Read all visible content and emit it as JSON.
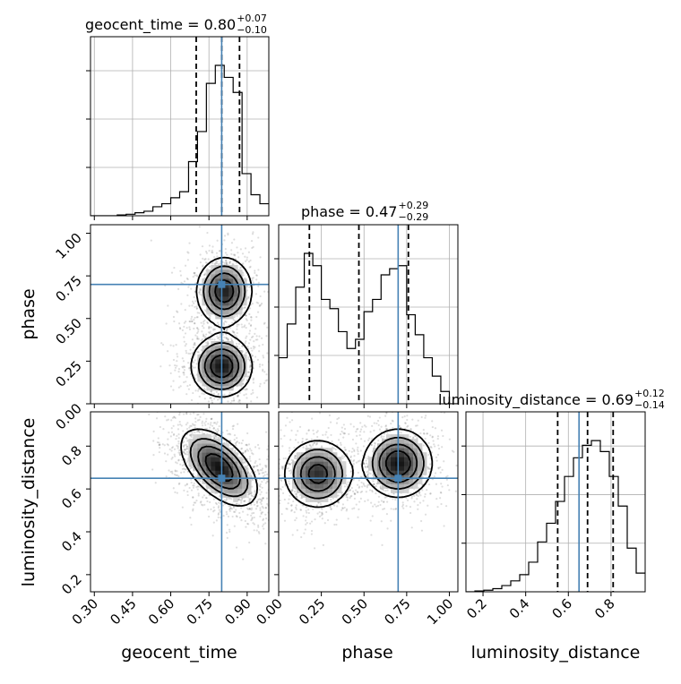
{
  "chart_data": {
    "type": "corner",
    "parameters": [
      "geocent_time",
      "phase",
      "luminosity_distance"
    ],
    "truth": {
      "geocent_time": 0.8,
      "phase": 0.7,
      "luminosity_distance": 0.65
    },
    "titles": [
      {
        "param": "geocent_time",
        "text": "geocent_time = 0.80",
        "plus": "+0.07",
        "minus": "−0.10"
      },
      {
        "param": "phase",
        "text": "phase = 0.47",
        "plus": "+0.29",
        "minus": "−0.29"
      },
      {
        "param": "luminosity_distance",
        "text": "luminosity_distance = 0.69",
        "plus": "+0.12",
        "minus": "−0.14"
      }
    ],
    "axes": {
      "geocent_time": {
        "range": [
          0.285,
          0.985
        ],
        "ticks": [
          0.3,
          0.45,
          0.6,
          0.75,
          0.9
        ],
        "tick_labels": [
          "0.30",
          "0.45",
          "0.60",
          "0.75",
          "0.90"
        ]
      },
      "phase": {
        "range": [
          0.0,
          1.05
        ],
        "ticks": [
          0.0,
          0.25,
          0.5,
          0.75,
          1.0
        ],
        "tick_labels": [
          "0.00",
          "0.25",
          "0.50",
          "0.75",
          "1.00"
        ]
      },
      "luminosity_distance": {
        "range": [
          0.12,
          0.96
        ],
        "ticks": [
          0.2,
          0.4,
          0.6,
          0.8
        ],
        "tick_labels": [
          "0.2",
          "0.4",
          "0.6",
          "0.8"
        ]
      }
    },
    "histograms": {
      "geocent_time": {
        "edges": [
          0.285,
          0.32,
          0.355,
          0.39,
          0.425,
          0.46,
          0.495,
          0.53,
          0.565,
          0.6,
          0.635,
          0.67,
          0.705,
          0.74,
          0.775,
          0.81,
          0.845,
          0.88,
          0.915,
          0.95,
          0.985
        ],
        "counts": [
          0.0,
          0.0,
          0.0,
          0.005,
          0.01,
          0.02,
          0.03,
          0.06,
          0.08,
          0.12,
          0.16,
          0.36,
          0.56,
          0.88,
          1.0,
          0.92,
          0.82,
          0.28,
          0.14,
          0.08
        ],
        "quantiles": [
          0.7,
          0.8,
          0.87
        ]
      },
      "phase": {
        "edges": [
          0.0,
          0.05,
          0.1,
          0.15,
          0.2,
          0.25,
          0.3,
          0.35,
          0.4,
          0.45,
          0.5,
          0.55,
          0.6,
          0.65,
          0.7,
          0.75,
          0.8,
          0.85,
          0.9,
          0.95,
          1.0,
          1.05
        ],
        "counts": [
          0.3,
          0.52,
          0.76,
          0.98,
          0.9,
          0.68,
          0.62,
          0.47,
          0.36,
          0.42,
          0.6,
          0.68,
          0.84,
          0.88,
          0.9,
          0.58,
          0.45,
          0.3,
          0.18,
          0.08,
          0.0
        ],
        "quantiles": [
          0.18,
          0.47,
          0.76
        ]
      },
      "luminosity_distance": {
        "edges": [
          0.12,
          0.162,
          0.204,
          0.246,
          0.288,
          0.33,
          0.372,
          0.414,
          0.456,
          0.498,
          0.54,
          0.582,
          0.624,
          0.666,
          0.708,
          0.75,
          0.792,
          0.834,
          0.876,
          0.918,
          0.96
        ],
        "counts": [
          0.0,
          0.005,
          0.01,
          0.02,
          0.04,
          0.07,
          0.11,
          0.19,
          0.32,
          0.44,
          0.58,
          0.74,
          0.86,
          0.94,
          0.97,
          0.9,
          0.74,
          0.55,
          0.28,
          0.12
        ],
        "quantiles": [
          0.55,
          0.69,
          0.81
        ]
      }
    },
    "density_2d": [
      {
        "x": "geocent_time",
        "y": "phase",
        "modes": [
          {
            "cx": 0.81,
            "cy": 0.66,
            "sx": 0.055,
            "sy": 0.1,
            "w": 1.0
          },
          {
            "cx": 0.8,
            "cy": 0.22,
            "sx": 0.06,
            "sy": 0.09,
            "w": 1.05
          }
        ]
      },
      {
        "x": "geocent_time",
        "y": "luminosity_distance",
        "modes": [
          {
            "cx": 0.79,
            "cy": 0.7,
            "sx": 0.075,
            "sy": 0.09,
            "w": 1.0,
            "rho": -0.55
          }
        ]
      },
      {
        "x": "phase",
        "y": "luminosity_distance",
        "modes": [
          {
            "cx": 0.23,
            "cy": 0.67,
            "sx": 0.1,
            "sy": 0.08,
            "w": 0.9
          },
          {
            "cx": 0.7,
            "cy": 0.72,
            "sx": 0.1,
            "sy": 0.08,
            "w": 1.0
          }
        ]
      }
    ],
    "grid": true
  }
}
